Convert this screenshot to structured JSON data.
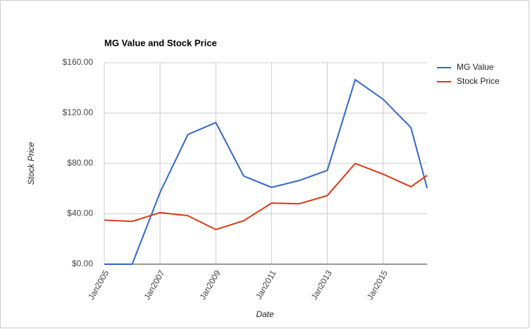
{
  "chart_data": {
    "type": "line",
    "title": "MG Value and Stock Price",
    "x_label": "Date",
    "y_label": "Stock Price",
    "x": [
      2005,
      2006,
      2007,
      2008,
      2009,
      2010,
      2011,
      2012,
      2013,
      2014,
      2015,
      2016,
      2016.58
    ],
    "series": [
      {
        "name": "MG Value",
        "color": "#3366cc",
        "values": [
          0,
          0,
          57,
          103,
          112.5,
          70,
          61,
          66.5,
          74.5,
          146.5,
          131,
          108.5,
          60.5
        ]
      },
      {
        "name": "Stock Price",
        "color": "#dc3912",
        "values": [
          35,
          34,
          41,
          38.5,
          27.5,
          34.5,
          48.5,
          48,
          54.5,
          80,
          71.5,
          61.5,
          70.5
        ]
      }
    ],
    "xlim": [
      2005,
      2016.58
    ],
    "xticks": [
      {
        "value": 2005,
        "label": "Jan2005"
      },
      {
        "value": 2007,
        "label": "Jan2007"
      },
      {
        "value": 2009,
        "label": "Jan2009"
      },
      {
        "value": 2011,
        "label": "Jan2011"
      },
      {
        "value": 2013,
        "label": "Jan2013"
      },
      {
        "value": 2015,
        "label": "Jan2015"
      }
    ],
    "ylim": [
      0,
      160
    ],
    "yticks": [
      {
        "value": 0,
        "label": "$0.00"
      },
      {
        "value": 40,
        "label": "$40.00"
      },
      {
        "value": 80,
        "label": "$80.00"
      },
      {
        "value": 120,
        "label": "$120.00"
      },
      {
        "value": 160,
        "label": "$160.00"
      }
    ],
    "grid": true,
    "legend": "right"
  }
}
